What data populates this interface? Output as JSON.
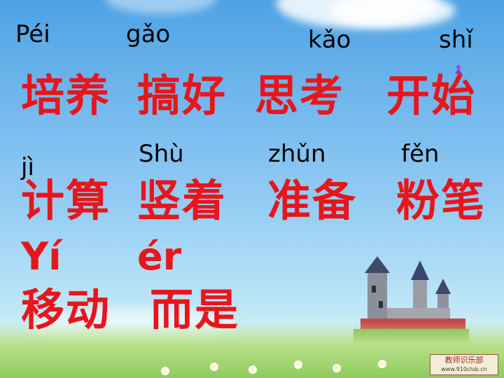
{
  "row1": {
    "pinyin": [
      "Péi",
      "gǎo",
      "kǎo",
      "shǐ"
    ],
    "words": [
      "培养",
      "搞好",
      "思考",
      "开始"
    ]
  },
  "row2": {
    "pinyin": [
      "jì",
      "Shù",
      "zhǔn",
      "fěn"
    ],
    "words": [
      "计算",
      "竖着",
      "准备",
      "粉笔"
    ]
  },
  "row3": {
    "pinyin": [
      "Yí",
      "ér"
    ],
    "words": [
      "移动",
      "而是"
    ]
  },
  "watermark": {
    "title": "教师识乐部",
    "url": "www.910club.cn"
  },
  "colors": {
    "hanzi": "#e8151b",
    "pinyin": "#000000",
    "sky_top": "#4ea2e4",
    "sky_bottom": "#cdeef6"
  }
}
